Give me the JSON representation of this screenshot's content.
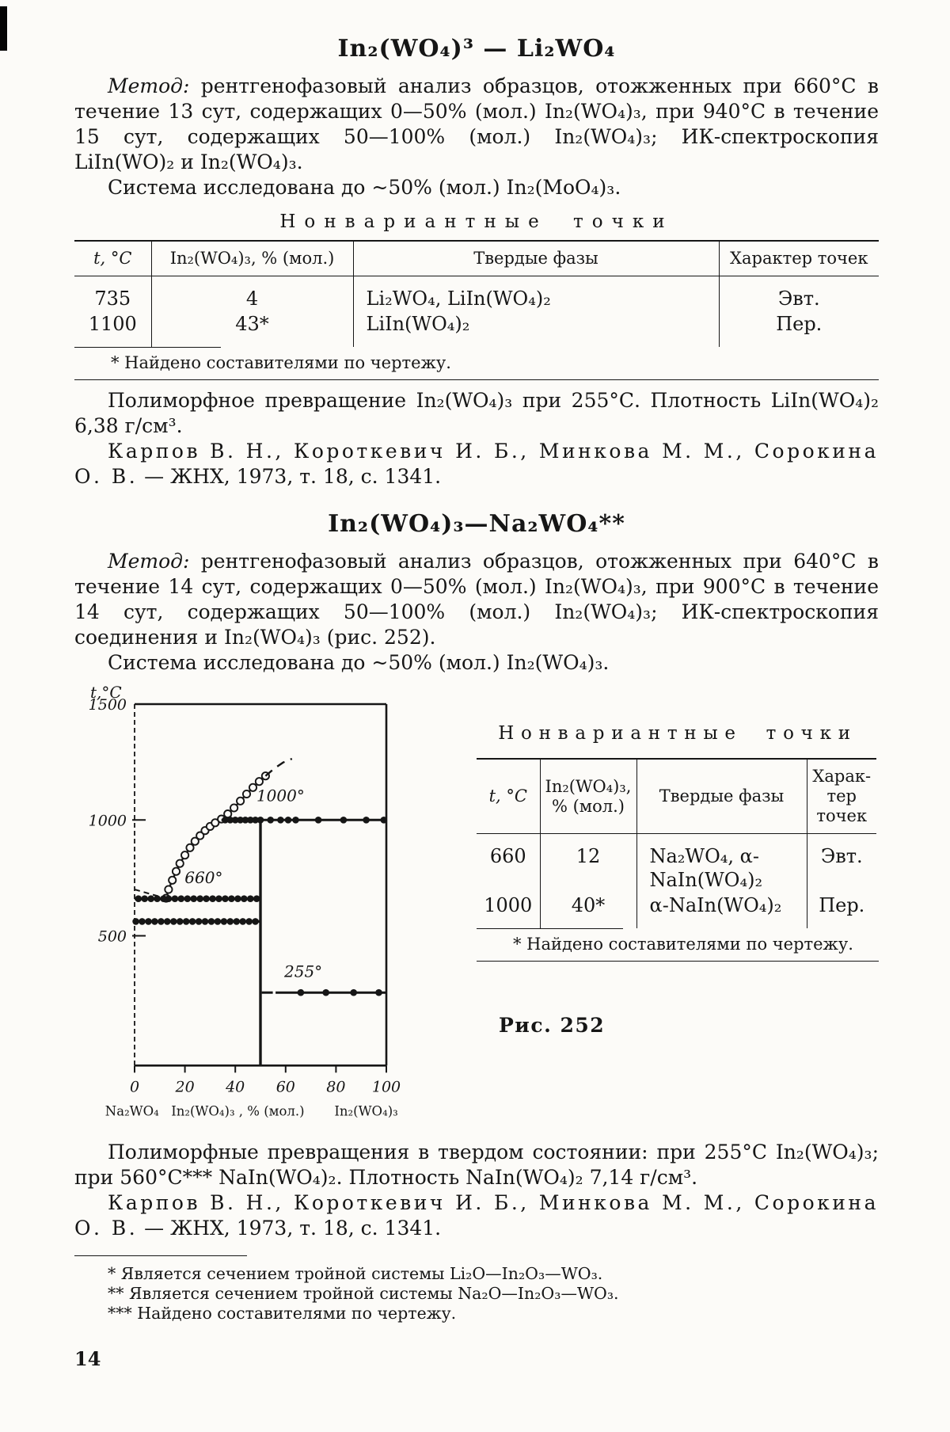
{
  "page_number": "14",
  "section1": {
    "title": "In₂(WO₄)³ — Li₂WO₄",
    "method_label": "Метод:",
    "method_text": " рентгенофазовый анализ образцов, отожженных при 660°С в течение 13 сут, содержащих 0—50% (мол.) In₂(WO₄)₃, при 940°С в течение 15 сут, содержащих 50—100% (мол.) In₂(WO₄)₃; ИК-спектроскопия LiIn(WO)₂ и In₂(WO₄)₃.",
    "system_line": "Система исследована до ~50% (мол.) In₂(MoO₄)₃.",
    "invariant_heading": "Нонвариантные точки",
    "table": {
      "columns": [
        "t, °С",
        "In₂(WO₄)₃, % (мол.)",
        "Твердые фазы",
        "Характер точек"
      ],
      "rows": [
        {
          "t": "735",
          "pct": "4",
          "phases": "Li₂WO₄, LiIn(WO₄)₂",
          "kind": "Эвт."
        },
        {
          "t": "1100",
          "pct": "43*",
          "phases": "LiIn(WO₄)₂",
          "kind": "Пер."
        }
      ],
      "footnote": "* Найдено составителями по чертежу."
    },
    "polymorph_note": "Полиморфное превращение In₂(WO₄)₃ при 255°С. Плотность LiIn(WO₄)₂ 6,38 г/см³.",
    "reference_authors": "Карпов В. Н., Короткевич И. Б., Минкова М. М., Сорокина О. В.",
    "reference_tail": " — ЖНХ, 1973, т. 18, с. 1341."
  },
  "section2": {
    "title": "In₂(WO₄)₃—Na₂WO₄**",
    "method_label": "Метод:",
    "method_text": " рентгенофазовый анализ образцов, отожженных при 640°С в течение 14 сут, содержащих 0—50% (мол.) In₂(WO₄)₃, при 900°С в течение 14 сут, содержащих 50—100% (мол.) In₂(WO₄)₃; ИК-спектроскопия соединения и In₂(WO₄)₃ (рис. 252).",
    "system_line": "Система исследована до ~50% (мол.) In₂(WO₄)₃.",
    "invariant_heading": "Нонвариантные точки",
    "table": {
      "columns": [
        "t, °С",
        "In₂(WO₄)₃, % (мол.)",
        "Твердые фазы",
        "Харак-тер точек"
      ],
      "rows": [
        {
          "t": "660",
          "pct": "12",
          "phases": "Na₂WO₄, α-NaIn(WO₄)₂",
          "kind": "Эвт."
        },
        {
          "t": "1000",
          "pct": "40*",
          "phases": "α-NaIn(WO₄)₂",
          "kind": "Пер."
        }
      ],
      "footnote": "* Найдено составителями по чертежу."
    },
    "figure_caption": "Рис. 252",
    "polymorph_note": "Полиморфные превращения в твердом состоянии: при 255°С In₂(WO₄)₃; при 560°С*** NaIn(WO₄)₂. Плотность NaIn(WO₄)₂ 7,14 г/см³.",
    "reference_authors": "Карпов В. Н., Короткевич И. Б., Минкова М. М., Сорокина О. В.",
    "reference_tail": " — ЖНХ, 1973, т. 18, с. 1341."
  },
  "footnotes": [
    "* Является сечением тройной системы Li₂O—In₂O₃—WO₃.",
    "** Является сечением тройной системы Na₂O—In₂O₃—WO₃.",
    "*** Найдено составителями по чертежу."
  ],
  "chart_data": {
    "type": "line",
    "title": "Рис. 252 — фазовая диаграмма системы Na₂WO₄ — In₂(WO₄)₃",
    "ylabel": "t,°C",
    "xlabel": "In₂(WO₄)₃ , % (мол.)",
    "x_left_endpoint_label": "Na₂WO₄",
    "x_right_endpoint_label": "In₂(WO₄)₃",
    "xticks": [
      0,
      20,
      40,
      60,
      80,
      100
    ],
    "yticks": [
      1500,
      1000,
      500
    ],
    "xlim": [
      0,
      100
    ],
    "ylim": [
      -60,
      1500
    ],
    "grid": false,
    "annotations": [
      {
        "text": "1000°",
        "x": 58,
        "t": 1082
      },
      {
        "text": "660°",
        "x": 27.5,
        "t": 728
      },
      {
        "text": "255°",
        "x": 67,
        "t": 322
      }
    ],
    "series": [
      {
        "name": "liquidus",
        "line": "solid",
        "marker": "open",
        "w": 2.4,
        "points": [
          [
            12.5,
            662
          ],
          [
            13.5,
            700
          ],
          [
            15,
            740
          ],
          [
            16.5,
            778
          ],
          [
            18,
            812
          ],
          [
            20,
            848
          ],
          [
            22,
            880
          ],
          [
            24,
            908
          ],
          [
            26,
            932
          ],
          [
            28,
            954
          ],
          [
            30,
            972
          ],
          [
            32,
            988
          ],
          [
            34.5,
            1004
          ],
          [
            37,
            1026
          ],
          [
            39.5,
            1052
          ],
          [
            42,
            1082
          ],
          [
            44.5,
            1112
          ],
          [
            47,
            1140
          ],
          [
            49.5,
            1166
          ],
          [
            52,
            1190
          ]
        ]
      },
      {
        "name": "liquidus-extrapolation",
        "line": "dashed",
        "dash": "11,8",
        "marker": "none",
        "w": 2.4,
        "points": [
          [
            52,
            1190
          ],
          [
            55.5,
            1222
          ],
          [
            59,
            1248
          ],
          [
            62.5,
            1264
          ]
        ]
      },
      {
        "name": "na2wo4-liquidus",
        "line": "dashed",
        "dash": "7,5",
        "marker": "none",
        "w": 2,
        "points": [
          [
            0,
            700
          ],
          [
            7,
            678
          ],
          [
            12.5,
            662
          ]
        ]
      },
      {
        "name": "eutectic-660-line",
        "line": "solid",
        "marker": "filled",
        "w": 3.2,
        "points": [
          [
            0,
            660
          ],
          [
            50,
            660
          ]
        ],
        "marker_x": [
          1.5,
          4,
          6.5,
          9,
          11.5,
          13.5,
          16,
          18.5,
          21,
          23.5,
          26,
          28.5,
          31,
          33.5,
          36,
          38.5,
          41,
          43.5,
          46,
          48.5
        ]
      },
      {
        "name": "transition-560-line",
        "line": "solid",
        "marker": "filled",
        "w": 3.2,
        "points": [
          [
            0,
            562
          ],
          [
            50,
            562
          ]
        ],
        "marker_x": [
          0.5,
          3,
          5.5,
          8,
          10.5,
          13,
          15.5,
          18,
          20.5,
          23,
          25.5,
          28,
          30.5,
          33,
          35.5,
          38,
          40.5,
          43,
          45.5,
          48
        ]
      },
      {
        "name": "peritectic-1000-line",
        "line": "solid",
        "marker": "filled",
        "w": 3,
        "points": [
          [
            34.5,
            1000
          ],
          [
            100,
            1000
          ]
        ],
        "marker_x": [
          36,
          38,
          40,
          42,
          44,
          46,
          48,
          50,
          54,
          58,
          61,
          64,
          73,
          83,
          92,
          99
        ]
      },
      {
        "name": "transition-255-line",
        "line": "solid",
        "marker": "filled",
        "w": 3,
        "points": [
          [
            56,
            255
          ],
          [
            100,
            255
          ]
        ],
        "marker_x": [
          66,
          76,
          87,
          97
        ]
      },
      {
        "name": "transition-255-lead",
        "line": "dashed",
        "dash": "14,9",
        "marker": "none",
        "w": 3,
        "points": [
          [
            50.5,
            255
          ],
          [
            56,
            255
          ]
        ]
      },
      {
        "name": "compound-50-vertical",
        "line": "solid",
        "marker": "none",
        "w": 3.4,
        "points": [
          [
            50,
            1000
          ],
          [
            50,
            -60
          ]
        ]
      }
    ]
  }
}
